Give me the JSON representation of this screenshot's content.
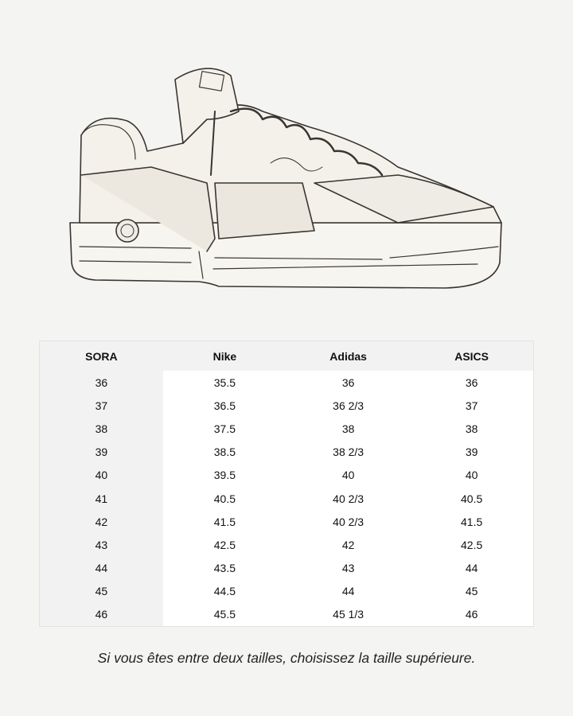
{
  "table": {
    "headers": [
      "SORA",
      "Nike",
      "Adidas",
      "ASICS"
    ],
    "rows": [
      [
        "36",
        "35.5",
        "36",
        "36"
      ],
      [
        "37",
        "36.5",
        "36 2/3",
        "37"
      ],
      [
        "38",
        "37.5",
        "38",
        "38"
      ],
      [
        "39",
        "38.5",
        "38 2/3",
        "39"
      ],
      [
        "40",
        "39.5",
        "40",
        "40"
      ],
      [
        "41",
        "40.5",
        "40 2/3",
        "40.5"
      ],
      [
        "42",
        "41.5",
        "40 2/3",
        "41.5"
      ],
      [
        "43",
        "42.5",
        "42",
        "42.5"
      ],
      [
        "44",
        "43.5",
        "43",
        "44"
      ],
      [
        "45",
        "44.5",
        "44",
        "45"
      ],
      [
        "46",
        "45.5",
        "45 1/3",
        "46"
      ]
    ]
  },
  "note": "Si vous êtes entre deux tailles, choisissez la taille supérieure.",
  "illustration": "sneaker-line-drawing"
}
